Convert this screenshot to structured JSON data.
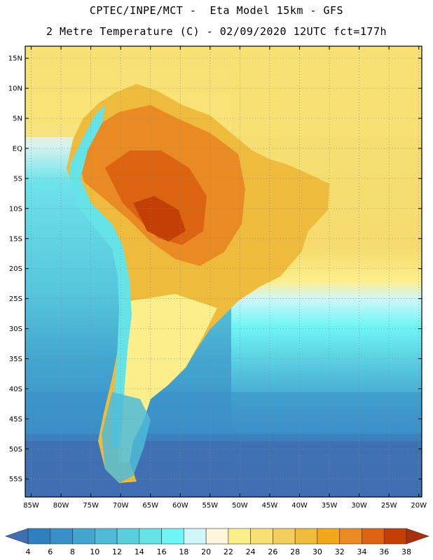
{
  "header": {
    "line1": "CPTEC/INPE/MCT -  Eta Model 15km - GFS",
    "line2": "2 Metre Temperature (C) - 02/09/2020 12UTC fct=177h"
  },
  "axes": {
    "lat_labels": [
      "15N",
      "10N",
      "5N",
      "EQ",
      "5S",
      "10S",
      "15S",
      "20S",
      "25S",
      "30S",
      "35S",
      "40S",
      "45S",
      "50S",
      "55S"
    ],
    "lat_values": [
      15,
      10,
      5,
      0,
      -5,
      -10,
      -15,
      -20,
      -25,
      -30,
      -35,
      -40,
      -45,
      -50,
      -55
    ],
    "lon_labels": [
      "85W",
      "80W",
      "75W",
      "70W",
      "65W",
      "60W",
      "55W",
      "50W",
      "45W",
      "40W",
      "35W",
      "30W",
      "25W",
      "20W"
    ],
    "lon_values": [
      -85,
      -80,
      -75,
      -70,
      -65,
      -60,
      -55,
      -50,
      -45,
      -40,
      -35,
      -30,
      -25,
      -20
    ],
    "lat_range": [
      -58,
      17
    ],
    "lon_range": [
      -86,
      -19.5
    ]
  },
  "colorbar": {
    "unit": "C",
    "labels": [
      "4",
      "6",
      "8",
      "10",
      "12",
      "14",
      "16",
      "18",
      "20",
      "22",
      "24",
      "26",
      "28",
      "30",
      "32",
      "34",
      "36",
      "38"
    ],
    "colors": [
      "#3f6fb1",
      "#2f7fbe",
      "#3a8fc8",
      "#44a5cf",
      "#4fbbd8",
      "#5ad0de",
      "#66e3e6",
      "#6ff6f4",
      "#d0f7fb",
      "#fdf5dc",
      "#fdee8c",
      "#f8e073",
      "#f3ce5c",
      "#efbb3d",
      "#f2a81c",
      "#e98a22",
      "#dc6410",
      "#c43f06",
      "#a8310c"
    ]
  }
}
